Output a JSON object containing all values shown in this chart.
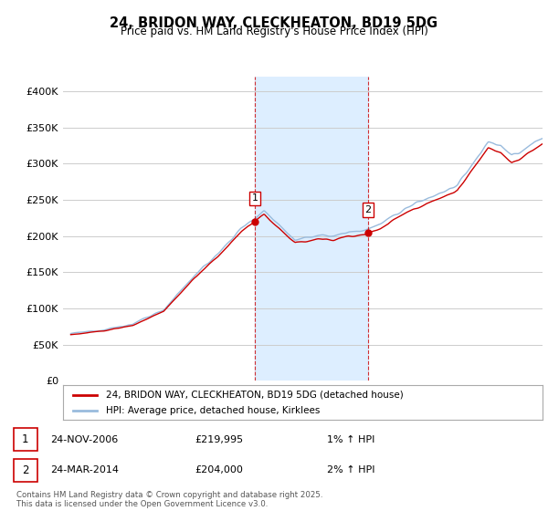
{
  "title": "24, BRIDON WAY, CLECKHEATON, BD19 5DG",
  "subtitle": "Price paid vs. HM Land Registry's House Price Index (HPI)",
  "sale1_date": "24-NOV-2006",
  "sale1_price": 219995,
  "sale2_date": "24-MAR-2014",
  "sale2_price": 204000,
  "legend_line1": "24, BRIDON WAY, CLECKHEATON, BD19 5DG (detached house)",
  "legend_line2": "HPI: Average price, detached house, Kirklees",
  "footnote": "Contains HM Land Registry data © Crown copyright and database right 2025.\nThis data is licensed under the Open Government Licence v3.0.",
  "red_color": "#cc0000",
  "blue_color": "#99bbdd",
  "shade_color": "#ddeeff",
  "grid_color": "#cccccc",
  "ylim": [
    0,
    420000
  ],
  "yticks": [
    0,
    50000,
    100000,
    150000,
    200000,
    250000,
    300000,
    350000,
    400000
  ],
  "ytick_labels": [
    "£0",
    "£50K",
    "£100K",
    "£150K",
    "£200K",
    "£250K",
    "£300K",
    "£350K",
    "£400K"
  ],
  "sale1_x": 2006.9,
  "sale2_x": 2014.23,
  "xmin": 1995,
  "xmax": 2025.5
}
